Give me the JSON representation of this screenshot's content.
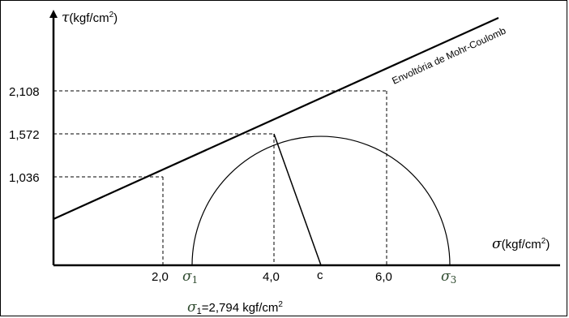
{
  "axes": {
    "y_symbol": "τ",
    "y_unit": "(kgf/cm",
    "y_unit_sup": "2",
    "y_unit_close": ")",
    "x_symbol": "σ",
    "x_unit": "(kgf/cm",
    "x_unit_sup": "2",
    "x_unit_close": ")"
  },
  "y_ticks": [
    "2,108",
    "1,572",
    "1,036"
  ],
  "x_ticks": [
    "2,0",
    "4,0",
    "6,0"
  ],
  "points": {
    "sigma1_symbol": "σ",
    "sigma1_sub": "1",
    "sigma3_symbol": "σ",
    "sigma3_sub": "3",
    "center_label": "c"
  },
  "envelope_label": "Envoltória de Mohr-Coulomb",
  "result": {
    "symbol": "σ",
    "sub": "1",
    "text": "=2,794 kgf/cm",
    "sup": "2"
  },
  "colors": {
    "axis": "#000000",
    "greek_points": "#2e4a2e"
  }
}
